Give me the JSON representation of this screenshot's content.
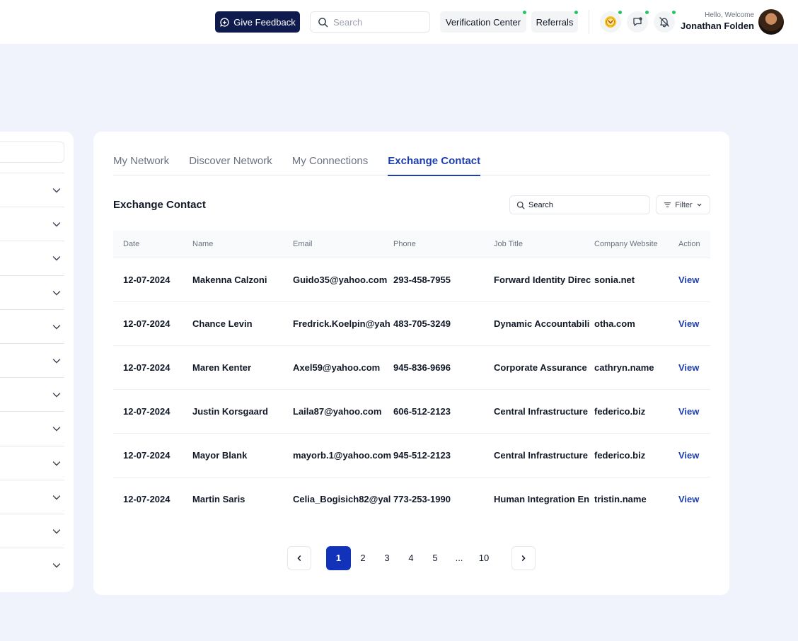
{
  "header": {
    "feedback_label": "Give Feedback",
    "search_placeholder": "Search",
    "verification_label": "Verification Center",
    "referrals_label": "Referrals",
    "greeting": "Hello, Welcome",
    "user_name": "Jonathan Folden"
  },
  "tabs": [
    {
      "label": "My Network"
    },
    {
      "label": "Discover Network"
    },
    {
      "label": "My Connections"
    },
    {
      "label": "Exchange Contact"
    }
  ],
  "section": {
    "title": "Exchange Contact",
    "search_placeholder": "Search",
    "filter_label": "Filter"
  },
  "table": {
    "headers": [
      "Date",
      "Name",
      "Email",
      "Phone",
      "Job Title",
      "Company Website",
      "Action"
    ],
    "rows": [
      [
        "12-07-2024",
        "Makenna Calzoni",
        "Guido35@yahoo.com",
        "293-458-7955",
        "Forward Identity Direc",
        "sonia.net",
        "View"
      ],
      [
        "12-07-2024",
        "Chance Levin",
        "Fredrick.Koelpin@yah",
        "483-705-3249",
        "Dynamic Accountabili",
        "otha.com",
        "View"
      ],
      [
        "12-07-2024",
        "Maren Kenter",
        "Axel59@yahoo.com",
        "945-836-9696",
        "Corporate Assurance",
        "cathryn.name",
        "View"
      ],
      [
        "12-07-2024",
        "Justin Korsgaard",
        "Laila87@yahoo.com",
        "606-512-2123",
        "Central Infrastructure",
        "federico.biz",
        "View"
      ],
      [
        "12-07-2024",
        "Mayor Blank",
        "mayorb.1@yahoo.com",
        "945-512-2123",
        "Central Infrastructure",
        "federico.biz",
        "View"
      ],
      [
        "12-07-2024",
        "Martin Saris",
        "Celia_Bogisich82@yal",
        "773-253-1990",
        "Human Integration En",
        "tristin.name",
        "View"
      ]
    ]
  },
  "pagination": {
    "pages": [
      "1",
      "2",
      "3",
      "4",
      "5",
      "...",
      "10"
    ],
    "current": "1"
  },
  "colors": {
    "accent": "#1e3fae",
    "feedback_bg": "#0f1b4c",
    "notification_dot": "#22c55e",
    "background": "#f1f3fc"
  },
  "icons": {
    "feedback": "chat-bubble-icon",
    "search": "search-icon",
    "badge": "coin-badge-icon",
    "messages": "message-icon",
    "notifications": "bell-icon",
    "chevron": "chevron-down-icon",
    "filter": "filter-lines-icon"
  }
}
